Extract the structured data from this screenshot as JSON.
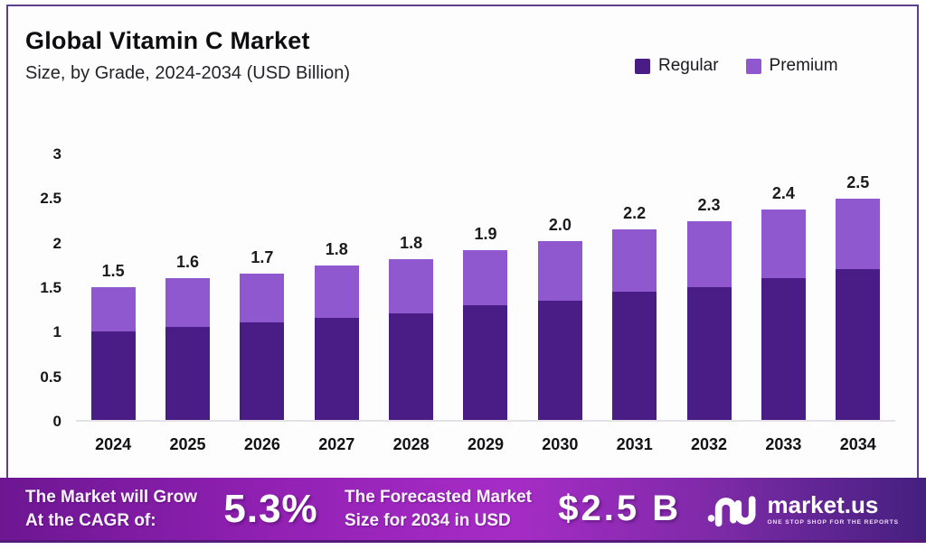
{
  "header": {
    "title": "Global Vitamin C Market",
    "subtitle": "Size, by Grade, 2024-2034 (USD Billion)"
  },
  "legend": {
    "items": [
      {
        "label": "Regular",
        "color": "#4a1d86"
      },
      {
        "label": "Premium",
        "color": "#9058cf"
      }
    ]
  },
  "colors": {
    "regular_bar": "#4a1d86",
    "premium_bar": "#9058cf",
    "frame_border": "#5e3f8f",
    "footer_gradient_left": "#6d1692",
    "footer_gradient_mid": "#a72cc7",
    "footer_gradient_right": "#44207f"
  },
  "chart_data": {
    "type": "bar",
    "stacked": true,
    "title": "Global Vitamin C Market",
    "subtitle": "Size, by Grade, 2024-2034 (USD Billion)",
    "xlabel": "",
    "ylabel": "USD Billion",
    "ylim": [
      0,
      3
    ],
    "yticks": [
      "3",
      "2.5",
      "2",
      "1.5",
      "1",
      "0.5",
      "0"
    ],
    "grid": false,
    "legend_position": "top-right",
    "categories": [
      "2024",
      "2025",
      "2026",
      "2027",
      "2028",
      "2029",
      "2030",
      "2031",
      "2032",
      "2033",
      "2034"
    ],
    "series": [
      {
        "name": "Regular",
        "values": [
          1.0,
          1.05,
          1.1,
          1.15,
          1.2,
          1.3,
          1.35,
          1.45,
          1.5,
          1.6,
          1.7
        ]
      },
      {
        "name": "Premium",
        "values": [
          0.5,
          0.55,
          0.55,
          0.6,
          0.62,
          0.62,
          0.67,
          0.7,
          0.75,
          0.78,
          0.8
        ]
      }
    ],
    "totals_labels": [
      "1.5",
      "1.6",
      "1.7",
      "1.8",
      "1.8",
      "1.9",
      "2.0",
      "2.2",
      "2.3",
      "2.4",
      "2.5"
    ]
  },
  "footer": {
    "cagr_line1": "The Market will Grow",
    "cagr_line2": "At the CAGR of:",
    "cagr_value": "5.3%",
    "forecast_line1": "The Forecasted Market",
    "forecast_line2": "Size for 2034 in USD",
    "forecast_value": "$2.5 B",
    "brand_name": "market.us",
    "brand_tagline": "ONE STOP SHOP FOR THE REPORTS"
  }
}
